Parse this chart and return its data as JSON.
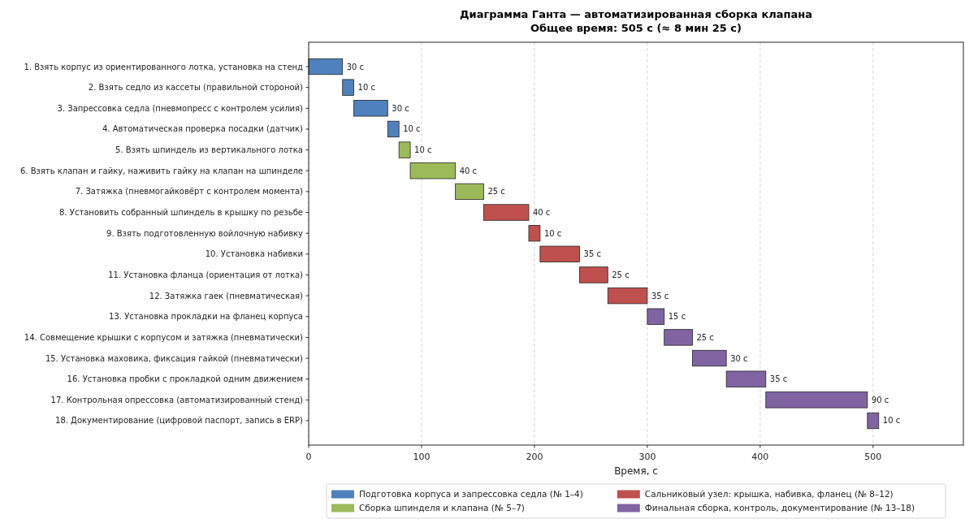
{
  "chart_data": {
    "type": "bar",
    "orientation": "horizontal",
    "title": "Диаграмма Ганта — автоматизированная сборка клапана\nОбщее время: 505 с (≈ 8 мин 25 с)",
    "xlabel": "Время, с",
    "categories": [
      "1. Взять корпус из ориентированного лотка, установка на стенд",
      "2. Взять седло из кассеты (правильной стороной)",
      "3. Запрессовка седла (пневмопресс с контролем усилия)",
      "4. Автоматическая проверка посадки (датчик)",
      "5. Взять шпиндель из вертикального лотка",
      "6. Взять клапан и гайку, наживить гайку на клапан на шпинделе",
      "7. Затяжка (пневмогайковёрт с контролем момента)",
      "8. Установить собранный шпиндель в крышку по резьбе",
      "9. Взять подготовленную войлочную набивку",
      "10. Установка набивки",
      "11. Установка фланца (ориентация от лотка)",
      "12. Затяжка гаек (пневматическая)",
      "13. Установка прокладки на фланец корпуса",
      "14. Совмещение крышки с корпусом и затяжка (пневматически)",
      "15. Установка маховика, фиксация гайкой (пневматически)",
      "16. Установка пробки с прокладкой одним движением",
      "17. Контрольная опрессовка (автоматизированный стенд)",
      "18. Документирование (цифровой паспорт, запись в ERP)"
    ],
    "series": [
      {
        "name": "Подготовка корпуса и запрессовка седла (№ 1–4)",
        "color": "#4f81bd",
        "values": [
          30,
          10,
          30,
          10,
          null,
          null,
          null,
          null,
          null,
          null,
          null,
          null,
          null,
          null,
          null,
          null,
          null,
          null
        ],
        "base": [
          0,
          30,
          40,
          70,
          null,
          null,
          null,
          null,
          null,
          null,
          null,
          null,
          null,
          null,
          null,
          null,
          null,
          null
        ],
        "value_labels": [
          "30 с",
          "10 с",
          "30 с",
          "10 с",
          null,
          null,
          null,
          null,
          null,
          null,
          null,
          null,
          null,
          null,
          null,
          null,
          null,
          null
        ]
      },
      {
        "name": "Сборка шпинделя и клапана (№ 5–7)",
        "color": "#9bbb59",
        "values": [
          null,
          null,
          null,
          null,
          10,
          40,
          25,
          null,
          null,
          null,
          null,
          null,
          null,
          null,
          null,
          null,
          null,
          null
        ],
        "base": [
          null,
          null,
          null,
          null,
          80,
          90,
          130,
          null,
          null,
          null,
          null,
          null,
          null,
          null,
          null,
          null,
          null,
          null
        ],
        "value_labels": [
          null,
          null,
          null,
          null,
          "10 с",
          "40 с",
          "25 с",
          null,
          null,
          null,
          null,
          null,
          null,
          null,
          null,
          null,
          null,
          null
        ]
      },
      {
        "name": "Сальниковый узел: крышка, набивка, фланец (№ 8–12)",
        "color": "#c0504d",
        "values": [
          null,
          null,
          null,
          null,
          null,
          null,
          null,
          40,
          10,
          35,
          25,
          35,
          null,
          null,
          null,
          null,
          null,
          null
        ],
        "base": [
          null,
          null,
          null,
          null,
          null,
          null,
          null,
          155,
          195,
          205,
          240,
          265,
          null,
          null,
          null,
          null,
          null,
          null
        ],
        "value_labels": [
          null,
          null,
          null,
          null,
          null,
          null,
          null,
          "40 с",
          "10 с",
          "35 с",
          "25 с",
          "35 с",
          null,
          null,
          null,
          null,
          null,
          null
        ]
      },
      {
        "name": "Финальная сборка, контроль, документирование (№ 13–18)",
        "color": "#8064a2",
        "values": [
          null,
          null,
          null,
          null,
          null,
          null,
          null,
          null,
          null,
          null,
          null,
          null,
          15,
          25,
          30,
          35,
          90,
          10
        ],
        "base": [
          null,
          null,
          null,
          null,
          null,
          null,
          null,
          null,
          null,
          null,
          null,
          null,
          300,
          315,
          340,
          370,
          405,
          495
        ],
        "value_labels": [
          null,
          null,
          null,
          null,
          null,
          null,
          null,
          null,
          null,
          null,
          null,
          null,
          "15 с",
          "25 с",
          "30 с",
          "35 с",
          "90 с",
          "10 с"
        ]
      }
    ],
    "xlim": [
      0,
      580
    ],
    "xticks": [
      0,
      100,
      200,
      300,
      400,
      500
    ],
    "grid": "x",
    "legend": "bottom"
  }
}
